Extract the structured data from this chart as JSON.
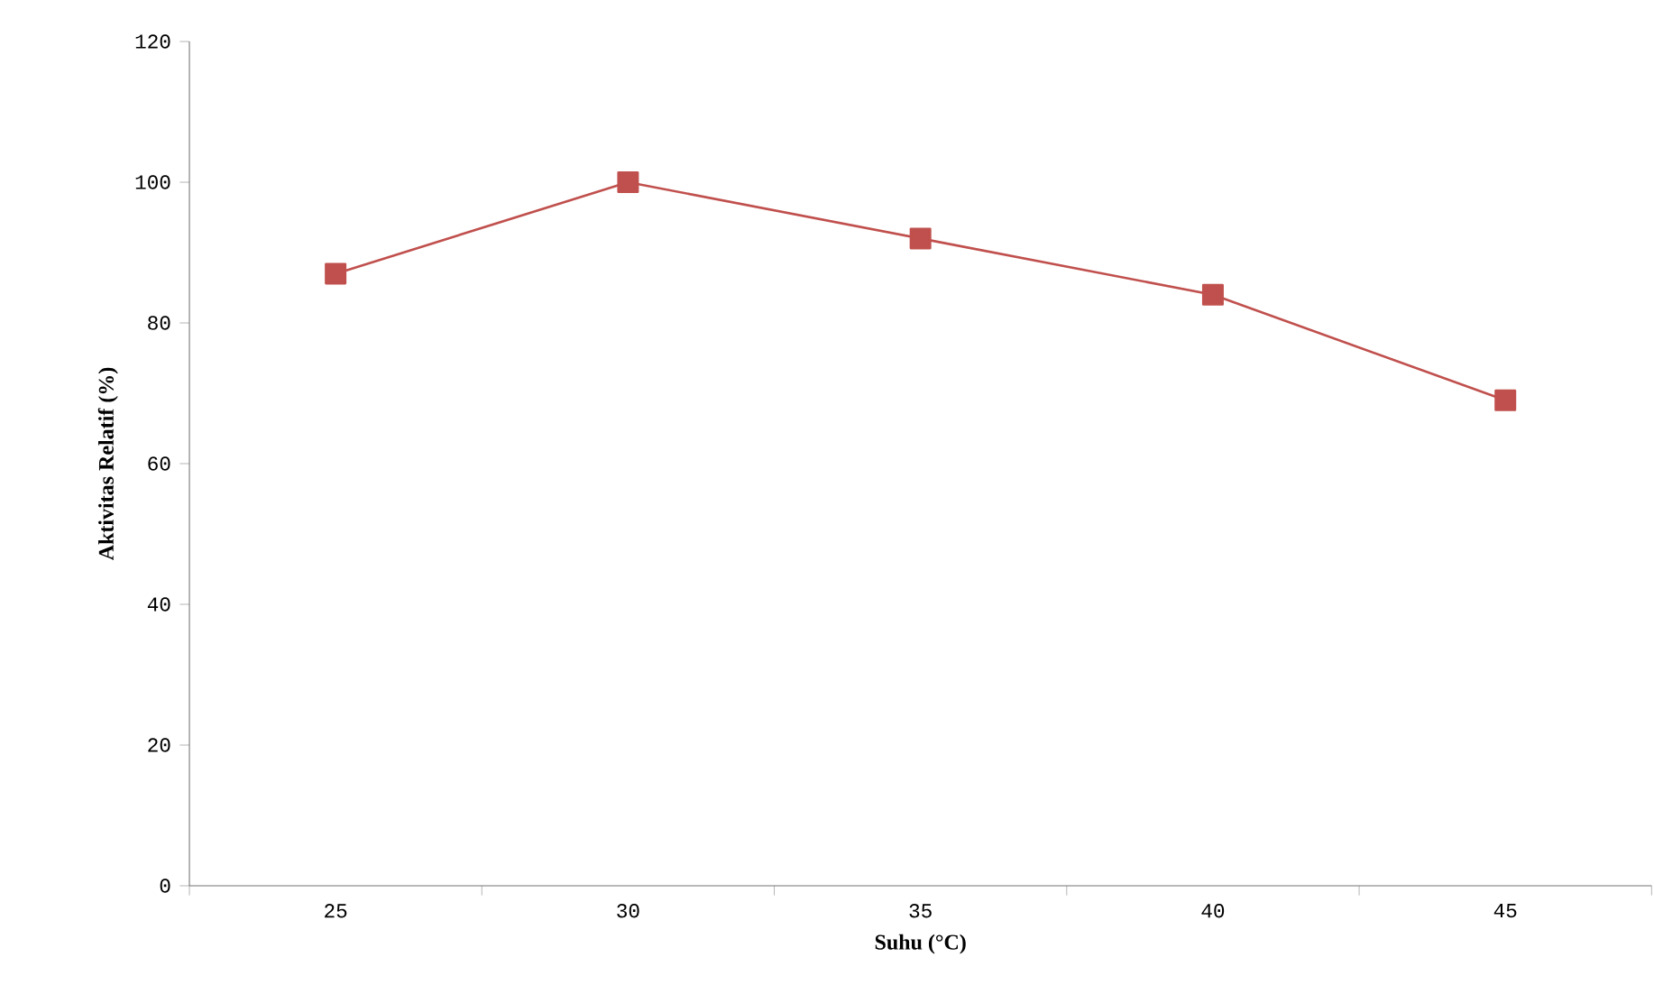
{
  "chart_data": {
    "type": "line",
    "xlabel": "Suhu (°C)",
    "ylabel": "Aktivitas Relatif (%)",
    "categories": [
      "25",
      "30",
      "35",
      "40",
      "45"
    ],
    "series": [
      {
        "color": "#c0504d",
        "values": [
          87,
          100,
          92,
          84,
          69
        ]
      }
    ],
    "ylim": [
      0,
      120
    ],
    "yticks": [
      0,
      20,
      40,
      60,
      80,
      100,
      120
    ],
    "marker": "square",
    "line_style": "solid",
    "grid": false
  }
}
